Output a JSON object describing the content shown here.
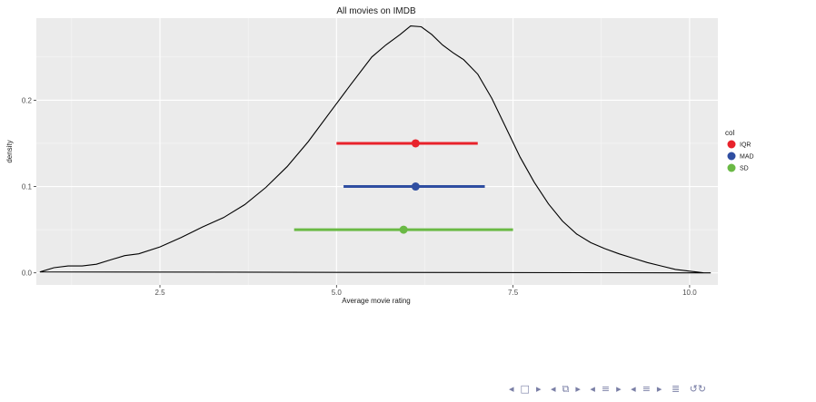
{
  "chart_data": {
    "type": "density",
    "title": "All movies on IMDB",
    "xlabel": "Average movie rating",
    "ylabel": "density",
    "xlim": [
      0.75,
      10.4
    ],
    "ylim": [
      -0.014,
      0.295
    ],
    "x_ticks": [
      2.5,
      5.0,
      7.5,
      10.0
    ],
    "x_tick_labels": [
      "2.5",
      "5.0",
      "7.5",
      "10.0"
    ],
    "y_ticks": [
      0.0,
      0.1,
      0.2
    ],
    "y_tick_labels": [
      "0.0",
      "0.1",
      "0.2"
    ],
    "grid": true,
    "panel_color": "#ebebeb",
    "density_curve": {
      "x": [
        0.8,
        1.0,
        1.2,
        1.4,
        1.6,
        1.8,
        2.0,
        2.2,
        2.5,
        2.8,
        3.1,
        3.4,
        3.7,
        4.0,
        4.3,
        4.6,
        4.9,
        5.2,
        5.5,
        5.7,
        5.9,
        6.05,
        6.2,
        6.35,
        6.5,
        6.65,
        6.8,
        7.0,
        7.2,
        7.4,
        7.6,
        7.8,
        8.0,
        8.2,
        8.4,
        8.6,
        8.8,
        9.0,
        9.2,
        9.4,
        9.6,
        9.8,
        10.0,
        10.1,
        10.2,
        10.3
      ],
      "y": [
        0.001,
        0.006,
        0.008,
        0.008,
        0.01,
        0.015,
        0.02,
        0.022,
        0.03,
        0.041,
        0.053,
        0.064,
        0.079,
        0.099,
        0.123,
        0.152,
        0.185,
        0.218,
        0.25,
        0.264,
        0.276,
        0.286,
        0.285,
        0.276,
        0.264,
        0.255,
        0.247,
        0.23,
        0.202,
        0.168,
        0.134,
        0.105,
        0.08,
        0.06,
        0.045,
        0.035,
        0.028,
        0.022,
        0.017,
        0.012,
        0.008,
        0.004,
        0.002,
        0.001,
        0.0,
        0.0
      ]
    },
    "intervals": [
      {
        "name": "IQR",
        "y": 0.15,
        "center": 6.12,
        "low": 5.0,
        "high": 7.0,
        "color": "#e8222b"
      },
      {
        "name": "MAD",
        "y": 0.1,
        "center": 6.12,
        "low": 5.1,
        "high": 7.1,
        "color": "#2f4ea1"
      },
      {
        "name": "SD",
        "y": 0.05,
        "center": 5.95,
        "low": 4.4,
        "high": 7.5,
        "color": "#6ab945"
      }
    ],
    "legend": {
      "title": "col",
      "placement": "right",
      "entries": [
        "IQR",
        "MAD",
        "SD"
      ]
    }
  },
  "nav_icons": [
    "nav-frame-prev-icon",
    "nav-frame-icon",
    "nav-frame-next-icon",
    "nav-subsection-prev-icon",
    "nav-subsection-icon",
    "nav-subsection-next-icon",
    "nav-section-prev-icon",
    "nav-section-icon",
    "nav-section-next-icon",
    "nav-document-prev-icon",
    "nav-document-icon",
    "nav-document-next-icon",
    "nav-appendix-icon",
    "nav-search-icon"
  ]
}
